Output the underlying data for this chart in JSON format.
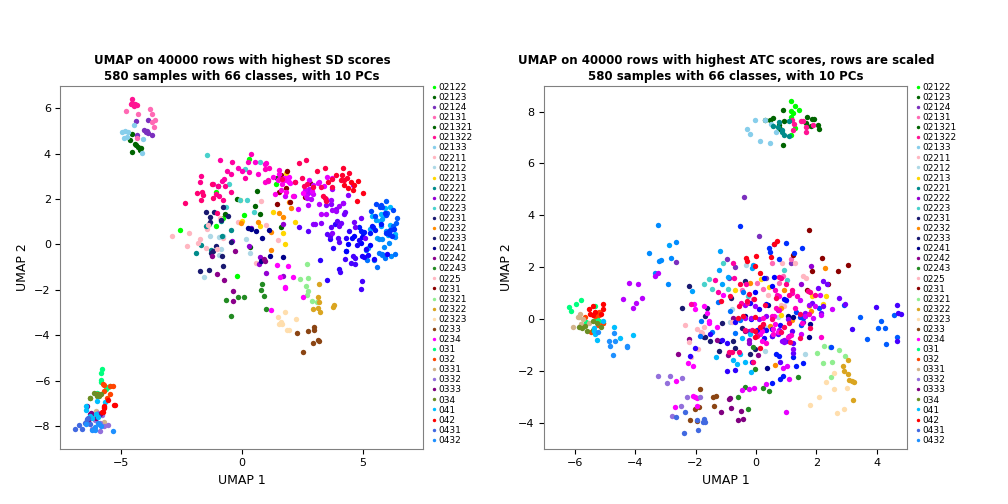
{
  "title1": "UMAP on 40000 rows with highest SD scores\n580 samples with 66 classes, with 10 PCs",
  "title2": "UMAP on 40000 rows with highest ATC scores, rows are scaled\n580 samples with 66 classes, with 10 PCs",
  "xlabel": "UMAP 1",
  "ylabel": "UMAP 2",
  "legend_classes": [
    "02122",
    "02123",
    "02124",
    "02131",
    "021321",
    "021322",
    "02133",
    "02211",
    "02212",
    "02213",
    "02221",
    "02222",
    "02223",
    "02231",
    "02232",
    "02233",
    "02241",
    "02242",
    "02243",
    "0225",
    "0231",
    "02321",
    "02322",
    "02323",
    "0233",
    "0234",
    "031",
    "032",
    "0331",
    "0332",
    "0333",
    "034",
    "041",
    "042",
    "0431",
    "0432"
  ],
  "legend_colors": [
    "#00FF00",
    "#006400",
    "#9400D3",
    "#FF69B4",
    "#006400",
    "#FF1493",
    "#87CEEB",
    "#FFB6C1",
    "#ADD8E6",
    "#FFFF00",
    "#008080",
    "#9400D3",
    "#40E0D0",
    "#000080",
    "#FF8C00",
    "#191970",
    "#000080",
    "#8B008B",
    "#228B22",
    "#FFB6C1",
    "#8B0000",
    "#90EE90",
    "#DAA520",
    "#FFDEAD",
    "#A0522D",
    "#FF00FF",
    "#00FF7F",
    "#FF4500",
    "#D2B48C",
    "#9370DB",
    "#800080",
    "#6B8E23",
    "#00BFFF",
    "#FF0000",
    "#1E90FF",
    "#1E90FF"
  ],
  "background": "#FFFFFF",
  "plot_bg": "#FFFFFF",
  "marker_size": 15,
  "legend_fontsize": 6.5,
  "title_fontsize": 8.5,
  "axis_fontsize": 9,
  "tick_fontsize": 8
}
